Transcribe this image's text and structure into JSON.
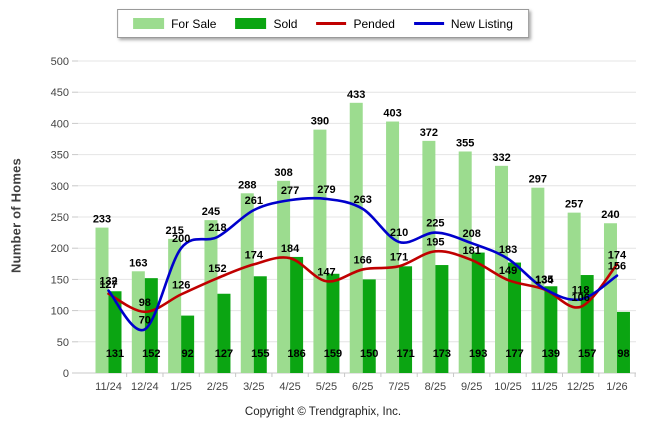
{
  "legend": {
    "items": [
      {
        "label": "For Sale",
        "type": "bar",
        "color": "#9CDC8F"
      },
      {
        "label": "Sold",
        "type": "bar",
        "color": "#0BA512"
      },
      {
        "label": "Pended",
        "type": "line",
        "color": "#C00000"
      },
      {
        "label": "New Listing",
        "type": "line",
        "color": "#0000CC"
      }
    ]
  },
  "chart_data": {
    "type": "bar",
    "categories": [
      "11/24",
      "12/24",
      "1/25",
      "2/25",
      "3/25",
      "4/25",
      "5/25",
      "6/25",
      "7/25",
      "8/25",
      "9/25",
      "10/25",
      "11/25",
      "12/25",
      "1/26"
    ],
    "series": [
      {
        "name": "For Sale",
        "type": "bar",
        "color": "#9CDC8F",
        "values": [
          233,
          163,
          215,
          245,
          288,
          308,
          390,
          433,
          403,
          372,
          355,
          332,
          297,
          257,
          240
        ]
      },
      {
        "name": "Sold",
        "type": "bar",
        "color": "#0BA512",
        "values": [
          131,
          152,
          92,
          127,
          155,
          186,
          159,
          150,
          171,
          173,
          193,
          177,
          139,
          157,
          98
        ]
      },
      {
        "name": "Pended",
        "type": "line",
        "color": "#C00000",
        "values": [
          127,
          98,
          126,
          152,
          174,
          184,
          147,
          166,
          171,
          195,
          181,
          149,
          134,
          106,
          174
        ]
      },
      {
        "name": "New Listing",
        "type": "line",
        "color": "#0000CC",
        "values": [
          132,
          70,
          200,
          218,
          261,
          277,
          279,
          263,
          210,
          225,
          208,
          183,
          135,
          118,
          156
        ]
      }
    ],
    "title": "",
    "xlabel": "",
    "ylabel": "Number of Homes",
    "ylim": [
      0,
      500
    ],
    "ytick_step": 50,
    "yticks": [
      0,
      50,
      100,
      150,
      200,
      250,
      300,
      350,
      400,
      450,
      500
    ],
    "grid": true,
    "legend_position": "top-center"
  },
  "footer": {
    "copyright": "Copyright © Trendgraphix, Inc."
  },
  "colors": {
    "gridline": "#e4e4e4",
    "axis": "#c8c8c8",
    "axis_text": "#444444",
    "data_label": "#000000"
  }
}
